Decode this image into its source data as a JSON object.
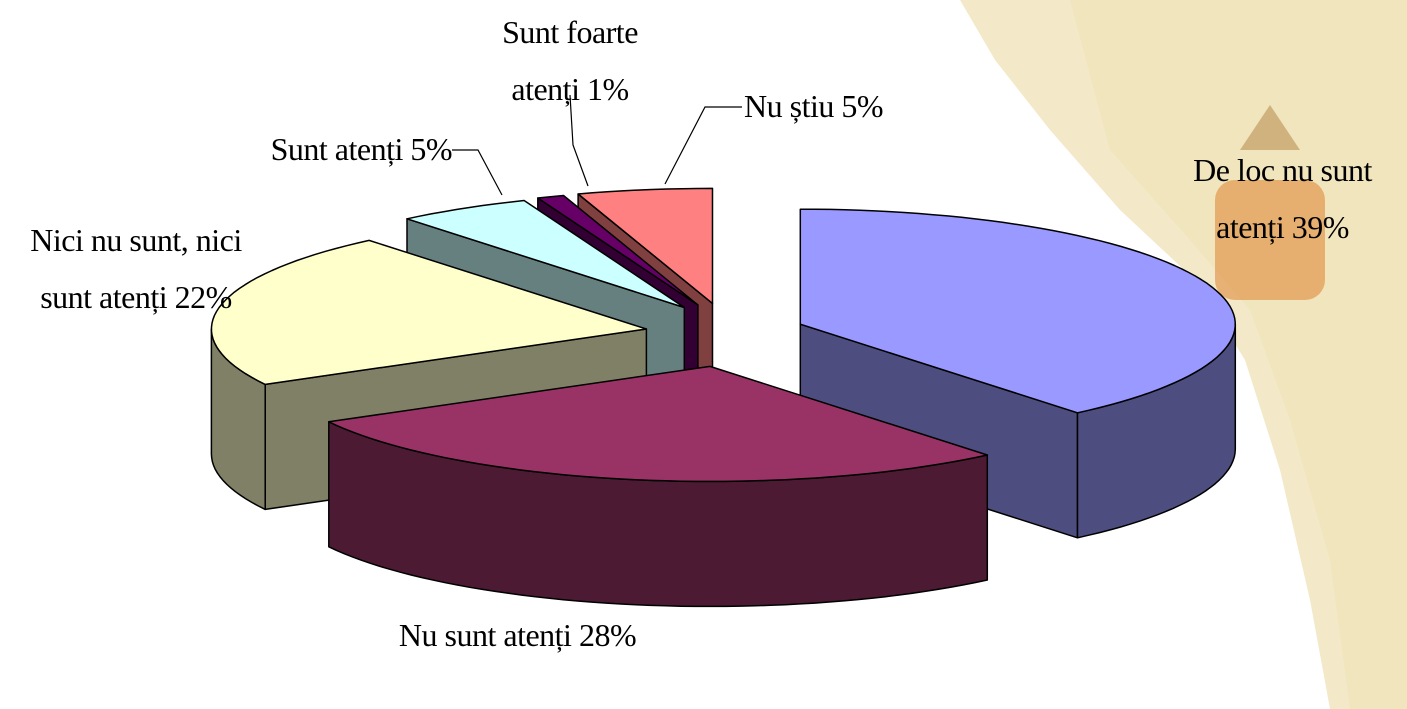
{
  "chart_data": {
    "type": "pie",
    "categories": [
      "De loc nu sunt atenți",
      "Nu sunt atenți",
      "Nici nu sunt, nici sunt atenți",
      "Sunt atenți",
      "Sunt foarte atenți",
      "Nu știu"
    ],
    "values": [
      39,
      28,
      22,
      5,
      1,
      5
    ],
    "value_labels": [
      "39%",
      "28%",
      "22%",
      "5%",
      "1%",
      "5%"
    ],
    "colors": [
      "#9999ff",
      "#993366",
      "#ffffcc",
      "#ccffff",
      "#660066",
      "#ff8080"
    ],
    "exploded": true
  }
}
